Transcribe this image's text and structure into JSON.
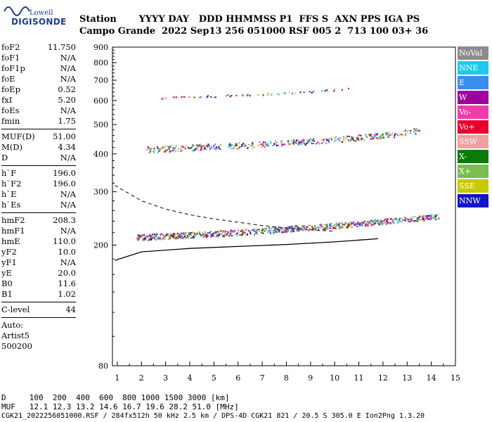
{
  "logo": {
    "top": "Lowell",
    "bottom": "DIGISONDE"
  },
  "header": {
    "line1": "Station       YYYY DAY   DDD HHMMSS P1  FFS S  AXN PPS IGA PS",
    "line2": "Campo Grande  2022 Sep13 256 051000 RSF 005 2  713 100 03+ 36"
  },
  "params": {
    "group1": [
      {
        "k": "foF2",
        "v": "11.750"
      },
      {
        "k": "foF1",
        "v": "N/A"
      },
      {
        "k": "foF1p",
        "v": "N/A"
      },
      {
        "k": "foE",
        "v": "N/A"
      },
      {
        "k": "foEp",
        "v": "0.52"
      },
      {
        "k": "fxI",
        "v": "5.20"
      },
      {
        "k": "foEs",
        "v": "N/A"
      },
      {
        "k": "fmin",
        "v": "1.75"
      }
    ],
    "group2": [
      {
        "k": "MUF(D)",
        "v": "51.00"
      },
      {
        "k": "M(D)",
        "v": "4.34"
      },
      {
        "k": "D",
        "v": "N/A"
      }
    ],
    "group3": [
      {
        "k": "h`F",
        "v": "196.0"
      },
      {
        "k": "h`F2",
        "v": "196.0"
      },
      {
        "k": "h`E",
        "v": "N/A"
      },
      {
        "k": "h`Es",
        "v": "N/A"
      }
    ],
    "group4": [
      {
        "k": "hmF2",
        "v": "208.3"
      },
      {
        "k": "hmF1",
        "v": "N/A"
      },
      {
        "k": "hmE",
        "v": "110.0"
      },
      {
        "k": "yF2",
        "v": "10.0"
      },
      {
        "k": "yF1",
        "v": "N/A"
      },
      {
        "k": "yE",
        "v": "20.0"
      },
      {
        "k": "B0",
        "v": "11.6"
      },
      {
        "k": "B1",
        "v": "1.02"
      }
    ],
    "clevel": {
      "k": "C-level",
      "v": "44"
    },
    "auto": [
      "Auto:",
      "Artist5",
      "500200"
    ]
  },
  "legend": [
    {
      "label": "NoVal",
      "color": "#8c8c8c"
    },
    {
      "label": "NNE",
      "color": "#1ec8f0"
    },
    {
      "label": "E",
      "color": "#3c8cf0"
    },
    {
      "label": "W",
      "color": "#a000a0"
    },
    {
      "label": "Vo-",
      "color": "#f03caa"
    },
    {
      "label": "Vo+",
      "color": "#e6002d"
    },
    {
      "label": "SSW",
      "color": "#f0a0a0"
    },
    {
      "label": "X-",
      "color": "#0a7a0a"
    },
    {
      "label": "X+",
      "color": "#78be50"
    },
    {
      "label": "SSE",
      "color": "#c8c800"
    },
    {
      "label": "NNW",
      "color": "#1414c8"
    }
  ],
  "chart_data": {
    "type": "scatter",
    "xlim": [
      0.8,
      15
    ],
    "xticks": [
      "1",
      "2",
      "3",
      "4",
      "5",
      "6",
      "7",
      "8",
      "9",
      "10",
      "11",
      "12",
      "13",
      "14",
      "15"
    ],
    "ylim": [
      80,
      900
    ],
    "yticks": [
      "80",
      "200",
      "300",
      "400",
      "500",
      "600",
      "700",
      "800",
      "900"
    ],
    "ytick_values": [
      80,
      200,
      300,
      400,
      500,
      600,
      700,
      800,
      900
    ],
    "y_scale": "log",
    "grid": false,
    "traces": [
      {
        "name": "F1",
        "x": [
          1.8,
          2.5,
          3.5,
          4.5,
          5.5,
          6.5,
          7.5,
          8.5,
          9.5,
          10.5,
          11.5,
          12.5,
          13.5,
          14.3
        ],
        "y": [
          210,
          212,
          214,
          216,
          218,
          220,
          223,
          226,
          229,
          232,
          236,
          240,
          244,
          248
        ]
      },
      {
        "name": "F2",
        "x": [
          2.2,
          3.5,
          5.0,
          6.5,
          8.0,
          9.5,
          11.0,
          12.5,
          13.5
        ],
        "y": [
          410,
          415,
          420,
          425,
          432,
          440,
          450,
          462,
          475
        ]
      },
      {
        "name": "F3",
        "x": [
          2.8,
          4.0,
          5.0,
          6.0,
          7.0,
          8.0,
          9.0,
          10.0,
          10.7
        ],
        "y": [
          612,
          616,
          620,
          625,
          630,
          636,
          642,
          650,
          660
        ]
      }
    ],
    "profile_solid": {
      "x": [
        0.9,
        2,
        4,
        6,
        8,
        10,
        11.8
      ],
      "y": [
        178,
        190,
        195,
        198,
        201,
        205,
        210
      ]
    },
    "profile_dashed": {
      "x": [
        0.9,
        2,
        3,
        4,
        5,
        6,
        7,
        8,
        9,
        10
      ],
      "y": [
        315,
        280,
        263,
        252,
        244,
        238,
        232,
        228,
        225,
        222
      ]
    }
  },
  "footer": {
    "line1": "D     100  200  400  600  800 1000 1500 3000 [km]",
    "line2": "MUF   12.1 12.3 13.2 14.6 16.7 19.6 28.2 51.0 [MHz]",
    "line3": "CGK21_2022256051000.RSF / 284fx512h 50 kHz 2.5 km / DPS-4D CGK21 821 / 20.5 S 305.0 E Ion2Png 1.3.20"
  }
}
